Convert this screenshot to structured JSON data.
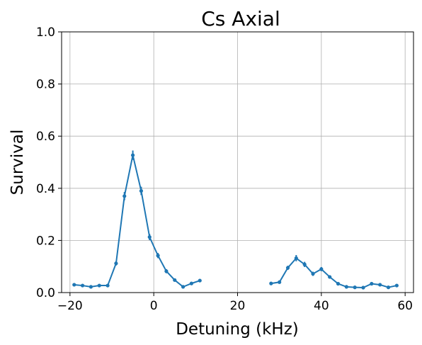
{
  "chart_data": {
    "type": "line",
    "title": "Cs Axial",
    "xlabel": "Detuning (kHz)",
    "ylabel": "Survival",
    "xlim": [
      -22,
      62
    ],
    "ylim": [
      0.0,
      1.0
    ],
    "xticks": [
      -20,
      0,
      20,
      40,
      60
    ],
    "xtick_labels": [
      "−20",
      "0",
      "20",
      "40",
      "60"
    ],
    "yticks": [
      0.0,
      0.2,
      0.4,
      0.6,
      0.8,
      1.0
    ],
    "ytick_labels": [
      "0.0",
      "0.2",
      "0.4",
      "0.6",
      "0.8",
      "1.0"
    ],
    "grid": true,
    "series_color": "#1f77b4",
    "series": [
      {
        "segment": 1,
        "points": [
          {
            "x": -19,
            "y": 0.03,
            "err": 0.004
          },
          {
            "x": -17,
            "y": 0.027,
            "err": 0.004
          },
          {
            "x": -15,
            "y": 0.022,
            "err": 0.004
          },
          {
            "x": -13,
            "y": 0.027,
            "err": 0.004
          },
          {
            "x": -11,
            "y": 0.027,
            "err": 0.004
          },
          {
            "x": -9,
            "y": 0.112,
            "err": 0.008
          },
          {
            "x": -7,
            "y": 0.37,
            "err": 0.016
          },
          {
            "x": -5,
            "y": 0.527,
            "err": 0.018
          },
          {
            "x": -3,
            "y": 0.39,
            "err": 0.016
          },
          {
            "x": -1,
            "y": 0.213,
            "err": 0.012
          },
          {
            "x": 1,
            "y": 0.142,
            "err": 0.01
          },
          {
            "x": 3,
            "y": 0.082,
            "err": 0.008
          },
          {
            "x": 5,
            "y": 0.048,
            "err": 0.006
          },
          {
            "x": 7,
            "y": 0.022,
            "err": 0.004
          },
          {
            "x": 9,
            "y": 0.035,
            "err": 0.005
          },
          {
            "x": 11,
            "y": 0.046,
            "err": 0.006
          }
        ]
      },
      {
        "segment": 2,
        "points": [
          {
            "x": 28,
            "y": 0.035,
            "err": 0.005
          },
          {
            "x": 30,
            "y": 0.04,
            "err": 0.005
          },
          {
            "x": 32,
            "y": 0.095,
            "err": 0.008
          },
          {
            "x": 34,
            "y": 0.132,
            "err": 0.012
          },
          {
            "x": 36,
            "y": 0.108,
            "err": 0.01
          },
          {
            "x": 38,
            "y": 0.072,
            "err": 0.008
          },
          {
            "x": 40,
            "y": 0.09,
            "err": 0.008
          },
          {
            "x": 42,
            "y": 0.06,
            "err": 0.006
          },
          {
            "x": 44,
            "y": 0.034,
            "err": 0.005
          },
          {
            "x": 46,
            "y": 0.022,
            "err": 0.004
          },
          {
            "x": 48,
            "y": 0.02,
            "err": 0.004
          },
          {
            "x": 50,
            "y": 0.019,
            "err": 0.004
          },
          {
            "x": 52,
            "y": 0.034,
            "err": 0.005
          },
          {
            "x": 54,
            "y": 0.03,
            "err": 0.005
          },
          {
            "x": 56,
            "y": 0.02,
            "err": 0.004
          },
          {
            "x": 58,
            "y": 0.027,
            "err": 0.004
          }
        ]
      }
    ]
  }
}
